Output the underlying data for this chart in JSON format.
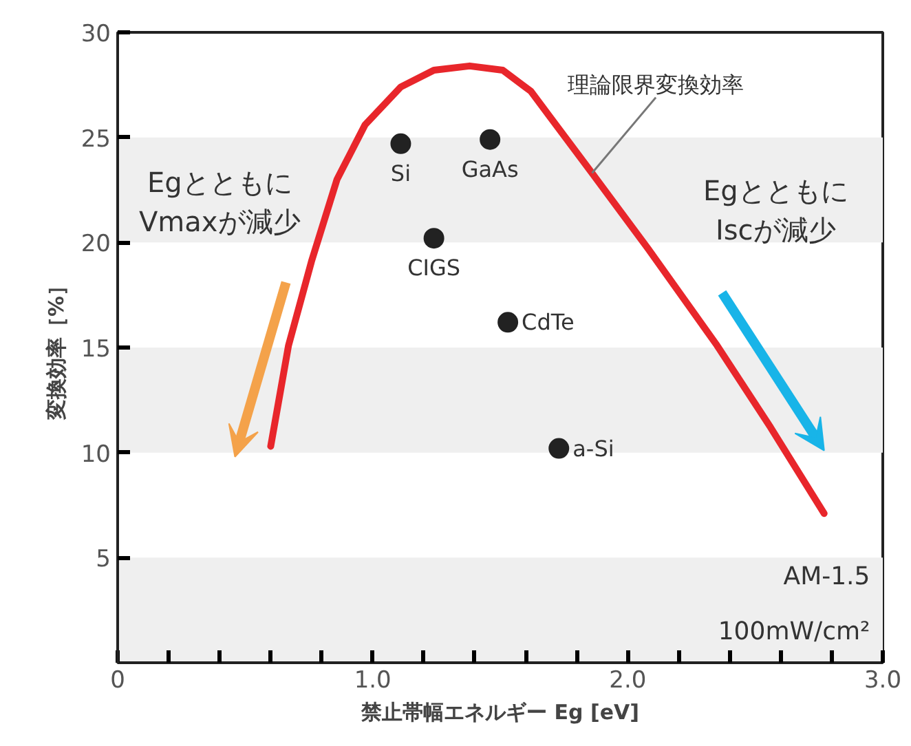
{
  "chart_data": {
    "type": "scatter",
    "xlabel": "禁止帯幅エネルギー Eg [eV]",
    "ylabel": "変換効率［%］",
    "xlim": [
      0,
      3.0
    ],
    "ylim": [
      0,
      30
    ],
    "xticks": [
      {
        "value": 0,
        "label": "0"
      },
      {
        "value": 0.2,
        "label": null
      },
      {
        "value": 0.4,
        "label": null
      },
      {
        "value": 0.6,
        "label": null
      },
      {
        "value": 0.8,
        "label": null
      },
      {
        "value": 1.0,
        "label": "1.0"
      },
      {
        "value": 1.2,
        "label": null
      },
      {
        "value": 1.4,
        "label": null
      },
      {
        "value": 1.6,
        "label": null
      },
      {
        "value": 1.8,
        "label": null
      },
      {
        "value": 2.0,
        "label": "2.0"
      },
      {
        "value": 2.2,
        "label": null
      },
      {
        "value": 2.4,
        "label": null
      },
      {
        "value": 2.6,
        "label": null
      },
      {
        "value": 2.8,
        "label": null
      },
      {
        "value": 3.0,
        "label": "3.0"
      }
    ],
    "yticks": [
      5,
      10,
      15,
      20,
      25,
      30
    ],
    "grid": false,
    "marker": "circle",
    "bands": [
      {
        "axis": "y",
        "from": 0,
        "to": 5,
        "color": "#efefef"
      },
      {
        "axis": "y",
        "from": 10,
        "to": 15,
        "color": "#efefef"
      },
      {
        "axis": "y",
        "from": 20,
        "to": 25,
        "color": "#efefef"
      }
    ],
    "series": [
      {
        "type": "line",
        "color": "#e8262b",
        "line_style": "solid",
        "marker": "none",
        "x": [
          0.6,
          0.67,
          0.76,
          0.86,
          0.97,
          1.11,
          1.24,
          1.38,
          1.51,
          1.62,
          1.7,
          1.86,
          2.08,
          2.35,
          2.56,
          2.77
        ],
        "values": [
          10.3,
          15.1,
          19.1,
          23.0,
          25.6,
          27.4,
          28.2,
          28.4,
          28.2,
          27.2,
          25.9,
          23.3,
          19.7,
          15.1,
          11.2,
          7.1
        ]
      },
      {
        "name": "Si",
        "color": "#222222",
        "x": [
          1.11
        ],
        "values": [
          24.7
        ]
      },
      {
        "name": "GaAs",
        "color": "#222222",
        "x": [
          1.46
        ],
        "values": [
          24.9
        ]
      },
      {
        "name": "CIGS",
        "color": "#222222",
        "x": [
          1.24
        ],
        "values": [
          20.2
        ]
      },
      {
        "name": "CdTe",
        "color": "#222222",
        "x": [
          1.53
        ],
        "values": [
          16.2
        ]
      },
      {
        "name": "a-Si",
        "color": "#222222",
        "x": [
          1.73
        ],
        "values": [
          10.2
        ]
      }
    ],
    "annotations": [
      {
        "text": "理論限界変換効率",
        "x": 1.86,
        "y": 23.3
      },
      "Egとともに\nVmaxが減少",
      "Egとともに\nIscが減少",
      "AM-1.5",
      "100mW/cm²"
    ]
  }
}
